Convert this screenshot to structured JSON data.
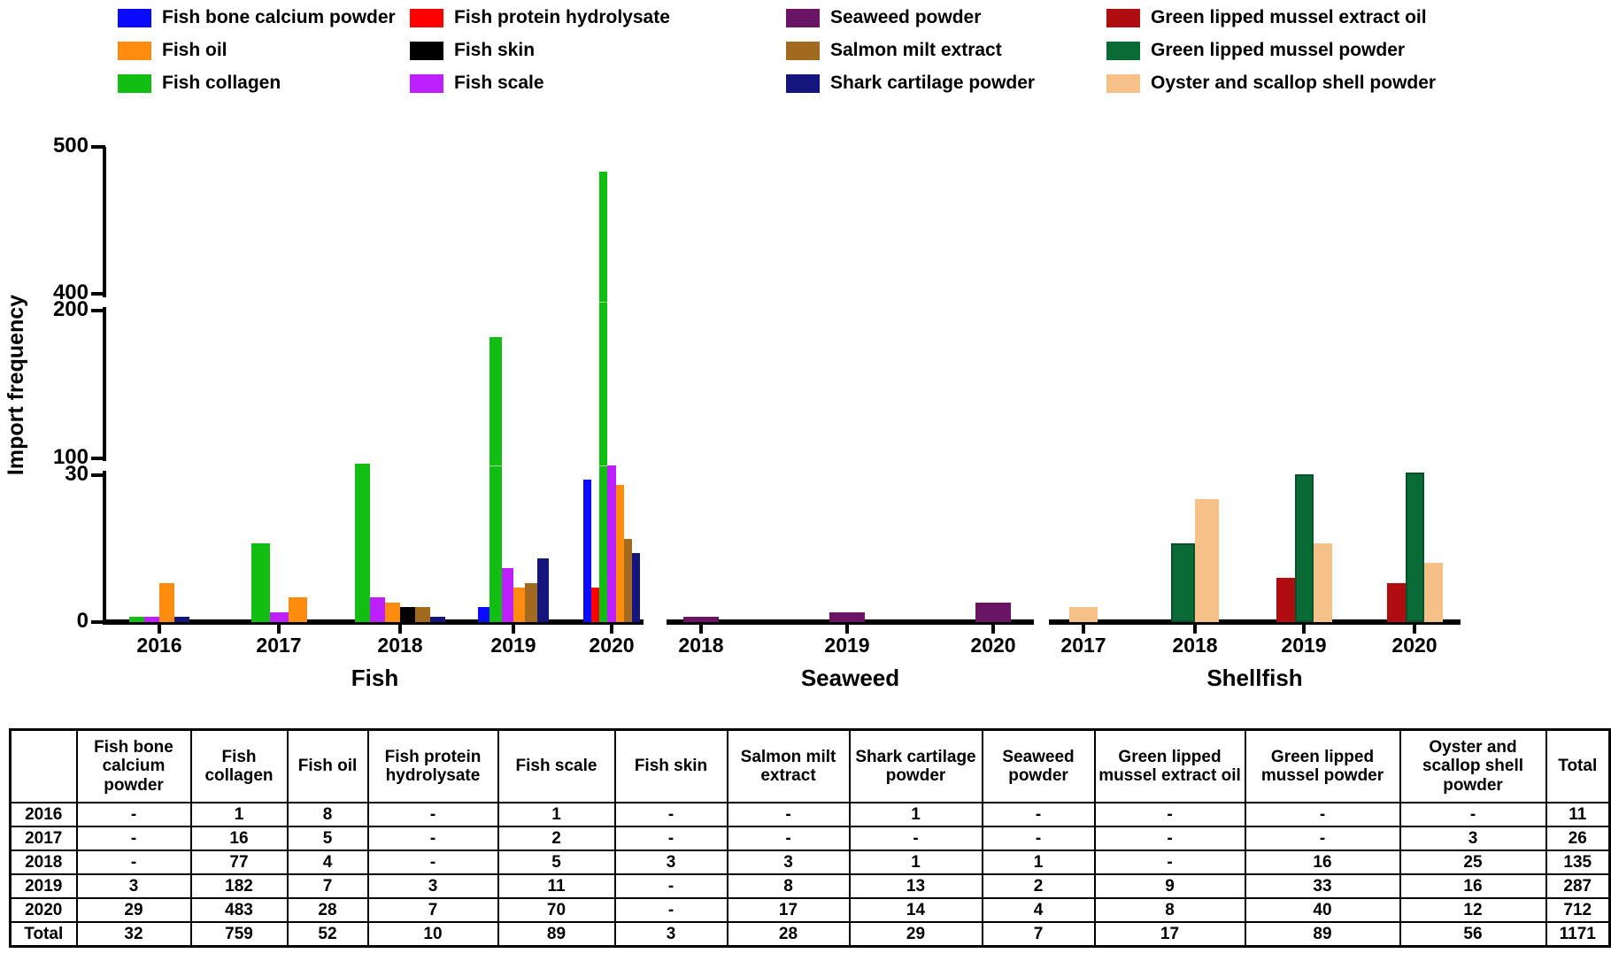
{
  "chart_data": {
    "type": "bar",
    "title": "",
    "ylabel": "Import frequency",
    "y_ticks": [
      "0",
      "30",
      "100",
      "200",
      "400",
      "500"
    ],
    "axis_breaks": [
      [
        30,
        100
      ],
      [
        200,
        400
      ]
    ],
    "legend_position": "top",
    "colors": {
      "Fish bone calcium powder": "#0a0aff",
      "Fish oil": "#ff8c0e",
      "Fish collagen": "#12be12",
      "Fish protein hydrolysate": "#ff0000",
      "Fish skin": "#000000",
      "Fish scale": "#be1ffe",
      "Seaweed powder": "#691464",
      "Salmon milt extract": "#a26a1e",
      "Shark cartilage powder": "#15157e",
      "Green lipped mussel extract oil": "#b00d10",
      "Green lipped mussel powder": "#0b6b36",
      "Oyster and scallop shell powder": "#f5c189"
    },
    "panels": [
      {
        "label": "Fish",
        "groups": [
          {
            "year": "2016",
            "bars": [
              [
                "Fish collagen",
                1
              ],
              [
                "Fish scale",
                1
              ],
              [
                "Fish oil",
                8
              ],
              [
                "Shark cartilage powder",
                1
              ]
            ]
          },
          {
            "year": "2017",
            "bars": [
              [
                "Fish collagen",
                16
              ],
              [
                "Fish scale",
                2
              ],
              [
                "Fish oil",
                5
              ]
            ]
          },
          {
            "year": "2018",
            "bars": [
              [
                "Fish collagen",
                77
              ],
              [
                "Fish scale",
                5
              ],
              [
                "Fish oil",
                4
              ],
              [
                "Fish skin",
                3
              ],
              [
                "Salmon milt extract",
                3
              ],
              [
                "Shark cartilage powder",
                1
              ]
            ]
          },
          {
            "year": "2019",
            "bars": [
              [
                "Fish bone calcium powder",
                3
              ],
              [
                "Fish collagen",
                182
              ],
              [
                "Fish scale",
                11
              ],
              [
                "Fish oil",
                7
              ],
              [
                "Salmon milt extract",
                8
              ],
              [
                "Shark cartilage powder",
                13
              ]
            ]
          },
          {
            "year": "2020",
            "bars": [
              [
                "Fish bone calcium powder",
                29
              ],
              [
                "Fish protein hydrolysate",
                7
              ],
              [
                "Fish collagen",
                483
              ],
              [
                "Fish scale",
                70
              ],
              [
                "Fish oil",
                28
              ],
              [
                "Salmon milt extract",
                17
              ],
              [
                "Shark cartilage powder",
                14
              ]
            ]
          }
        ]
      },
      {
        "label": "Seaweed",
        "groups": [
          {
            "year": "2018",
            "bars": [
              [
                "Seaweed powder",
                1
              ]
            ]
          },
          {
            "year": "2019",
            "bars": [
              [
                "Seaweed powder",
                2
              ]
            ]
          },
          {
            "year": "2020",
            "bars": [
              [
                "Seaweed powder",
                4
              ]
            ]
          }
        ]
      },
      {
        "label": "Shellfish",
        "groups": [
          {
            "year": "2017",
            "bars": [
              [
                "Oyster and scallop shell powder",
                3
              ]
            ]
          },
          {
            "year": "2018",
            "bars": [
              [
                "Green lipped mussel powder",
                16
              ],
              [
                "Oyster and scallop shell powder",
                25
              ]
            ]
          },
          {
            "year": "2019",
            "bars": [
              [
                "Green lipped mussel extract oil",
                9
              ],
              [
                "Green lipped mussel powder",
                33
              ],
              [
                "Oyster and scallop shell powder",
                16
              ]
            ]
          },
          {
            "year": "2020",
            "bars": [
              [
                "Green lipped mussel extract oil",
                8
              ],
              [
                "Green lipped mussel powder",
                40
              ],
              [
                "Oyster and scallop shell powder",
                12
              ]
            ]
          }
        ]
      }
    ]
  },
  "legend": {
    "columns": [
      [
        "Fish bone calcium powder",
        "Fish oil",
        "Fish collagen"
      ],
      [
        "Fish protein hydrolysate",
        "Fish skin",
        "Fish scale"
      ],
      [
        "Seaweed powder",
        "Salmon milt extract",
        "Shark cartilage powder"
      ],
      [
        "Green lipped mussel extract oil",
        "Green lipped mussel powder",
        "Oyster and scallop shell powder"
      ]
    ]
  },
  "table": {
    "columns": [
      "Fish bone calcium powder",
      "Fish collagen",
      "Fish oil",
      "Fish protein hydrolysate",
      "Fish scale",
      "Fish skin",
      "Salmon milt extract",
      "Shark cartilage powder",
      "Seaweed powder",
      "Green lipped mussel extract oil",
      "Green lipped mussel powder",
      "Oyster and scallop shell powder",
      "Total"
    ],
    "rows": [
      {
        "label": "2016",
        "values": [
          "-",
          "1",
          "8",
          "-",
          "1",
          "-",
          "-",
          "1",
          "-",
          "-",
          "-",
          "-",
          "11"
        ]
      },
      {
        "label": "2017",
        "values": [
          "-",
          "16",
          "5",
          "-",
          "2",
          "-",
          "-",
          "-",
          "-",
          "-",
          "-",
          "3",
          "26"
        ]
      },
      {
        "label": "2018",
        "values": [
          "-",
          "77",
          "4",
          "-",
          "5",
          "3",
          "3",
          "1",
          "1",
          "-",
          "16",
          "25",
          "135"
        ]
      },
      {
        "label": "2019",
        "values": [
          "3",
          "182",
          "7",
          "3",
          "11",
          "-",
          "8",
          "13",
          "2",
          "9",
          "33",
          "16",
          "287"
        ]
      },
      {
        "label": "2020",
        "values": [
          "29",
          "483",
          "28",
          "7",
          "70",
          "-",
          "17",
          "14",
          "4",
          "8",
          "40",
          "12",
          "712"
        ]
      },
      {
        "label": "Total",
        "values": [
          "32",
          "759",
          "52",
          "10",
          "89",
          "3",
          "28",
          "29",
          "7",
          "17",
          "89",
          "56",
          "1171"
        ]
      }
    ]
  }
}
